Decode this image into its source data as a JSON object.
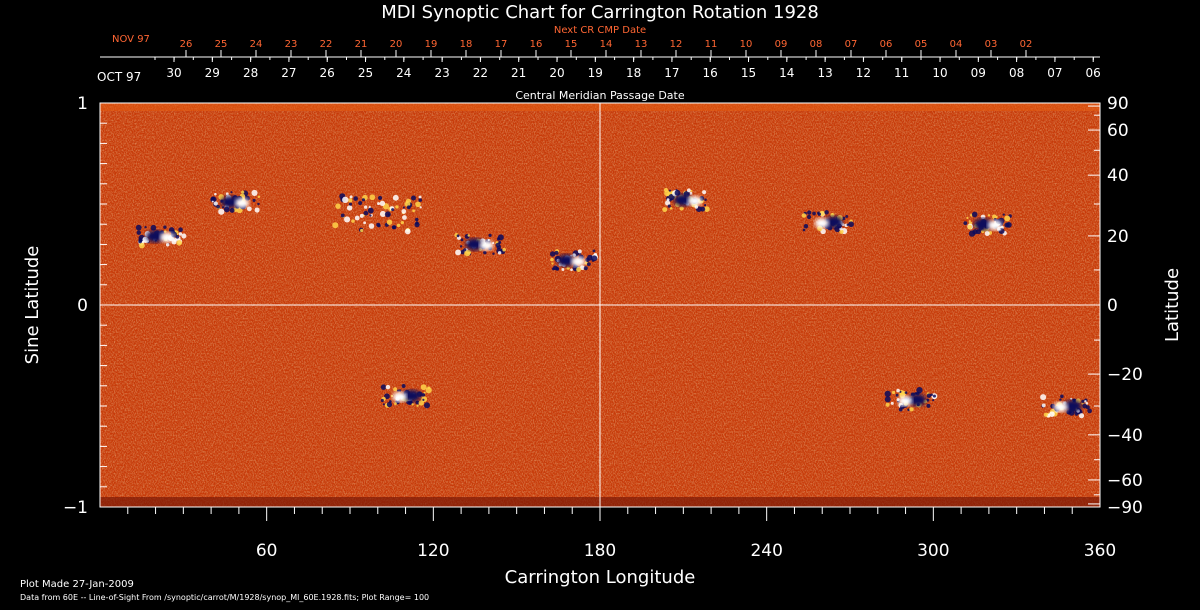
{
  "title": "MDI Synoptic Chart for Carrington Rotation 1928",
  "next_date_label": "Next CR CMP Date",
  "cmp_label": "Central Meridian Passage Date",
  "month_oct": "OCT 97",
  "month_nov": "NOV 97",
  "oct_days": [
    "30",
    "29",
    "28",
    "27",
    "26",
    "25",
    "24",
    "23",
    "22",
    "21",
    "20",
    "19",
    "18",
    "17",
    "16",
    "15",
    "14",
    "13",
    "12",
    "11",
    "10",
    "09",
    "08",
    "07",
    "06"
  ],
  "nov_days": [
    "26",
    "25",
    "24",
    "23",
    "22",
    "21",
    "20",
    "19",
    "18",
    "17",
    "16",
    "15",
    "14",
    "13",
    "12",
    "11",
    "10",
    "09",
    "08",
    "07",
    "06",
    "05",
    "04",
    "03",
    "02"
  ],
  "chart_data": {
    "type": "heatmap",
    "xlabel": "Carrington Longitude",
    "ylabel_left": "Sine Latitude",
    "ylabel_right": "Latitude",
    "xlim": [
      0,
      360
    ],
    "ylim": [
      -1,
      1
    ],
    "x_ticks": [
      "60",
      "120",
      "180",
      "240",
      "300",
      "360"
    ],
    "y_left_ticks": [
      "1",
      "0",
      "−1"
    ],
    "y_right_ticks": [
      "90",
      "60",
      "40",
      "20",
      "0",
      "−20",
      "−40",
      "−60",
      "−90"
    ],
    "plot_range": 100,
    "colors": {
      "background": "#c83a08",
      "positive": "#ffffff",
      "negative": "#0a0a5c",
      "grid": "#ffffff"
    },
    "regions": [
      {
        "lon": 22,
        "sinlat": 0.34,
        "pos": "east"
      },
      {
        "lon": 49,
        "sinlat": 0.51,
        "pos": "east"
      },
      {
        "lon": 100,
        "sinlat": 0.45,
        "pos": "wide"
      },
      {
        "lon": 137,
        "sinlat": 0.3,
        "pos": "east"
      },
      {
        "lon": 170,
        "sinlat": 0.22,
        "pos": "east"
      },
      {
        "lon": 212,
        "sinlat": 0.52,
        "pos": "east"
      },
      {
        "lon": 262,
        "sinlat": 0.41,
        "pos": "west"
      },
      {
        "lon": 320,
        "sinlat": 0.4,
        "pos": "east"
      },
      {
        "lon": 110,
        "sinlat": -0.45,
        "pos": "west"
      },
      {
        "lon": 292,
        "sinlat": -0.47,
        "pos": "west"
      },
      {
        "lon": 348,
        "sinlat": -0.5,
        "pos": "west"
      }
    ]
  },
  "footer": {
    "plot_made": "Plot Made 27-Jan-2009",
    "source": "Data from 60E -- Line-of-Sight From /synoptic/carrot/M/1928/synop_Ml_60E.1928.fits; Plot Range= 100"
  }
}
